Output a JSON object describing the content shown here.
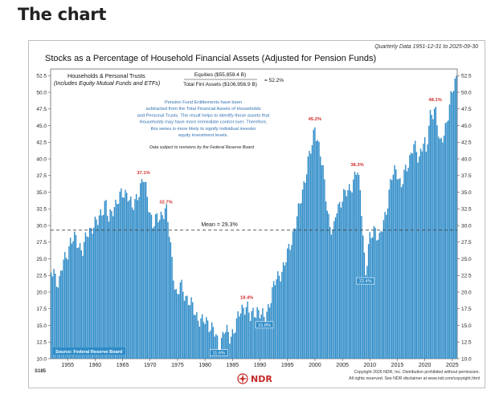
{
  "heading": "The chart",
  "header": {
    "quarterly_note": "Quarterly Data 1951-12-31 to 2025-09-30",
    "title": "Stocks as a Percentage of Household Financial Assets (Adjusted for Pension Funds)",
    "code": "S185"
  },
  "series_label": {
    "line1": "Households & Personal Trusts",
    "line2": "(Includes Equity Mutual Funds and ETFs)"
  },
  "formula": {
    "numerator": "Equities ($55,859.4 B)",
    "denominator": "Total Finl Assets ($106,956.9 B)",
    "result": "= 52.2%"
  },
  "note_lines": [
    "Pension Fund Entitlements have been",
    "subtracted from the Total Financial Assets of Households",
    "and Personal Trusts. The result helps to identify those assets that",
    "Households may have more immediate control over. Therefore,",
    "this series is more likely to signify individual investor",
    "equity investment levels."
  ],
  "revision_note": "Data subject to revisions by the Federal Reserve Board",
  "source": "Source: Federal Reserve Board",
  "mean_label": "Mean = 29.3%",
  "footer": {
    "copyright": "Copyright 2026 NDR, Inc. Distribution prohibited without permission.",
    "rights": "All rights reserved. See NDR disclaimer at www.ndr.com/copyright.html",
    "logo_text": "NDR"
  },
  "colors": {
    "bar": "#2f8cc8",
    "peak_label": "#d32f2f",
    "trough_bg": "#2f8cc8",
    "mean_line": "#444444",
    "logo": "#c62828"
  },
  "chart_data": {
    "type": "bar",
    "title": "Stocks as a Percentage of Household Financial Assets (Adjusted for Pension Funds)",
    "xlabel": "",
    "ylabel": "",
    "xlim": [
      1951.9,
      2025.9
    ],
    "ylim": [
      10,
      53.5
    ],
    "x_ticks": [
      1955,
      1960,
      1965,
      1970,
      1975,
      1980,
      1985,
      1990,
      1995,
      2000,
      2005,
      2010,
      2015,
      2020,
      2025
    ],
    "y_ticks": [
      10.0,
      12.5,
      15.0,
      17.5,
      20.0,
      22.5,
      25.0,
      27.5,
      30.0,
      32.5,
      35.0,
      37.5,
      40.0,
      42.5,
      45.0,
      47.5,
      50.0,
      52.5
    ],
    "mean": 29.3,
    "anchors": [
      [
        1951.9,
        22.8
      ],
      [
        1952.5,
        23.2
      ],
      [
        1953.4,
        21.0
      ],
      [
        1954.2,
        24.5
      ],
      [
        1954.9,
        26.0
      ],
      [
        1955.5,
        27.5
      ],
      [
        1956.5,
        28.0
      ],
      [
        1957.8,
        26.2
      ],
      [
        1958.5,
        28.5
      ],
      [
        1959.5,
        30.0
      ],
      [
        1960.5,
        30.5
      ],
      [
        1961.9,
        33.8
      ],
      [
        1962.5,
        30.5
      ],
      [
        1963.5,
        33.2
      ],
      [
        1964.5,
        34.2
      ],
      [
        1965.9,
        35.2
      ],
      [
        1966.8,
        32.2
      ],
      [
        1967.9,
        35.2
      ],
      [
        1968.8,
        37.1
      ],
      [
        1969.8,
        33.0
      ],
      [
        1970.5,
        30.2
      ],
      [
        1971.5,
        31.0
      ],
      [
        1972.9,
        32.7
      ],
      [
        1973.6,
        28.0
      ],
      [
        1974.3,
        22.5
      ],
      [
        1974.9,
        19.0
      ],
      [
        1975.5,
        21.0
      ],
      [
        1976.5,
        19.5
      ],
      [
        1977.5,
        18.0
      ],
      [
        1978.5,
        16.5
      ],
      [
        1979.5,
        15.5
      ],
      [
        1980.5,
        15.5
      ],
      [
        1981.5,
        14.5
      ],
      [
        1982.5,
        11.6
      ],
      [
        1983.5,
        14.5
      ],
      [
        1984.5,
        13.0
      ],
      [
        1985.5,
        15.0
      ],
      [
        1986.5,
        17.0
      ],
      [
        1987.6,
        18.4
      ],
      [
        1988.2,
        16.0
      ],
      [
        1989.5,
        17.5
      ],
      [
        1990.8,
        15.8
      ],
      [
        1991.9,
        19.0
      ],
      [
        1993.0,
        22.0
      ],
      [
        1994.5,
        24.0
      ],
      [
        1995.9,
        28.5
      ],
      [
        1996.9,
        31.5
      ],
      [
        1997.9,
        36.0
      ],
      [
        1998.9,
        40.0
      ],
      [
        1999.5,
        42.0
      ],
      [
        2000.0,
        45.2
      ],
      [
        2000.8,
        41.5
      ],
      [
        2001.5,
        38.0
      ],
      [
        2002.7,
        30.0
      ],
      [
        2003.4,
        28.5
      ],
      [
        2003.9,
        32.5
      ],
      [
        2004.9,
        34.0
      ],
      [
        2005.9,
        35.0
      ],
      [
        2006.9,
        36.5
      ],
      [
        2007.7,
        38.3
      ],
      [
        2008.4,
        34.0
      ],
      [
        2008.9,
        27.0
      ],
      [
        2009.2,
        22.4
      ],
      [
        2009.9,
        27.5
      ],
      [
        2010.9,
        30.0
      ],
      [
        2011.7,
        27.5
      ],
      [
        2012.9,
        32.0
      ],
      [
        2013.9,
        37.0
      ],
      [
        2014.9,
        38.5
      ],
      [
        2015.7,
        36.0
      ],
      [
        2016.9,
        39.0
      ],
      [
        2017.9,
        42.5
      ],
      [
        2018.9,
        39.5
      ],
      [
        2019.9,
        44.0
      ],
      [
        2020.2,
        40.0
      ],
      [
        2020.9,
        46.0
      ],
      [
        2021.9,
        48.1
      ],
      [
        2022.8,
        41.5
      ],
      [
        2023.9,
        45.5
      ],
      [
        2024.9,
        49.5
      ],
      [
        2025.7,
        52.2
      ]
    ],
    "annotations": [
      {
        "label": "37.1%",
        "x": 1968.8,
        "y": 37.1,
        "kind": "peak"
      },
      {
        "label": "32.7%",
        "x": 1972.9,
        "y": 32.7,
        "kind": "peak"
      },
      {
        "label": "11.6%",
        "x": 1982.5,
        "y": 11.6,
        "kind": "trough"
      },
      {
        "label": "18.4%",
        "x": 1987.6,
        "y": 18.4,
        "kind": "peak"
      },
      {
        "label": "15.8%",
        "x": 1990.8,
        "y": 15.8,
        "kind": "trough"
      },
      {
        "label": "45.2%",
        "x": 2000.0,
        "y": 45.2,
        "kind": "peak"
      },
      {
        "label": "38.3%",
        "x": 2007.7,
        "y": 38.3,
        "kind": "peak"
      },
      {
        "label": "22.4%",
        "x": 2009.2,
        "y": 22.4,
        "kind": "trough"
      },
      {
        "label": "48.1%",
        "x": 2021.9,
        "y": 48.1,
        "kind": "peak"
      }
    ]
  }
}
